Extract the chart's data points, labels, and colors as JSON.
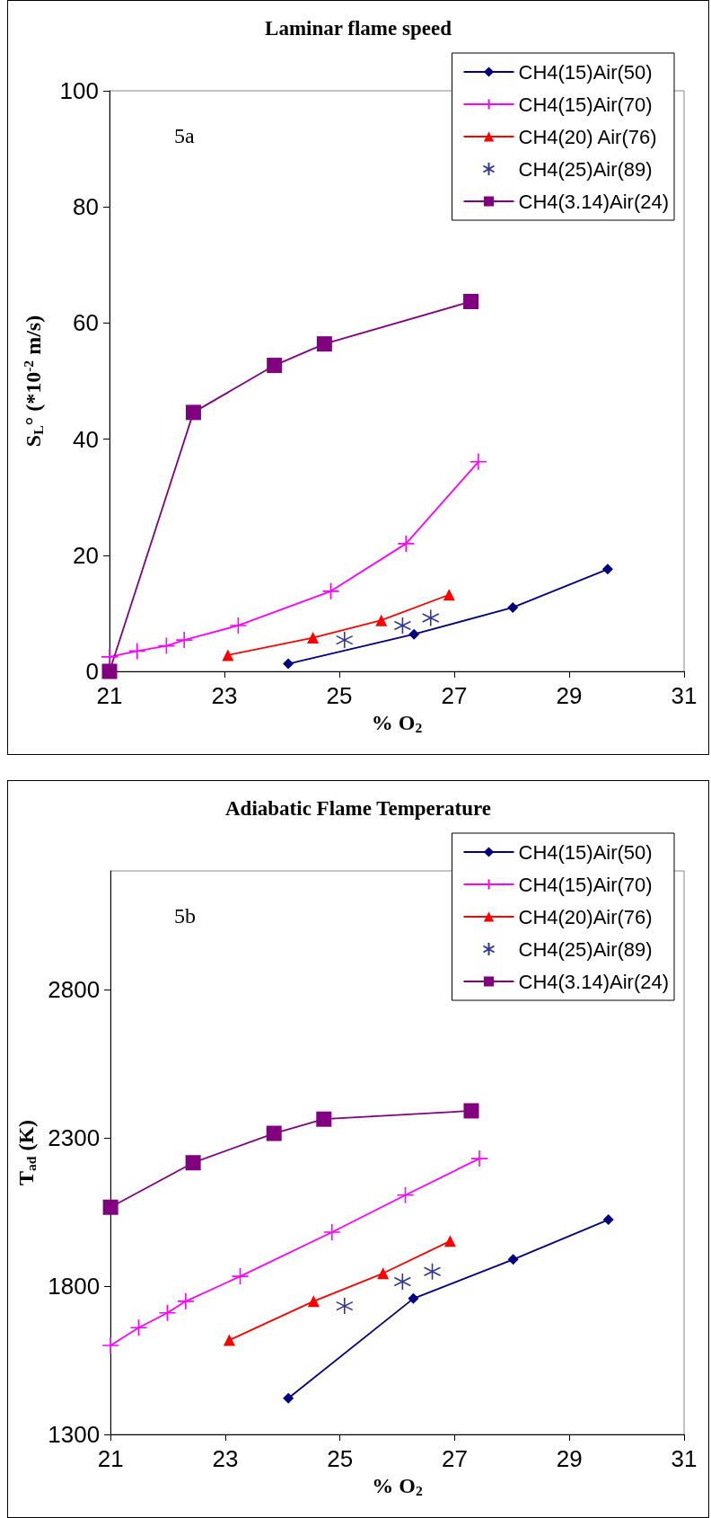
{
  "chart_data": [
    {
      "type": "line",
      "title": "Laminar flame speed",
      "xlabel": "% O$_{2}$",
      "ylabel": "S$_{L}$° (*10$^{-2}$ m/s)",
      "annotations": [
        "5a"
      ],
      "xlim": [
        21,
        31
      ],
      "xticks": [
        21,
        23,
        25,
        27,
        29,
        31
      ],
      "ylim": [
        0,
        100
      ],
      "yticks": [
        0,
        20,
        40,
        60,
        80,
        100
      ],
      "grid": false,
      "legend": "top right",
      "line_style": "solid",
      "series": [
        {
          "name": "CH4(15)Air(50)",
          "color": "#000080",
          "marker": "diamond",
          "x": [
            24.11,
            26.3,
            28.02,
            29.67
          ],
          "values": [
            1.3,
            6.4,
            11.0,
            17.6
          ]
        },
        {
          "name": "CH4(15)Air(70)",
          "color": "#ff00ff",
          "marker": "cross",
          "x": [
            21.0,
            21.48,
            21.99,
            22.3,
            23.24,
            24.85,
            26.16,
            27.42
          ],
          "values": [
            2.5,
            3.5,
            4.4,
            5.4,
            7.9,
            13.8,
            22.0,
            36.1
          ]
        },
        {
          "name": "CH4(20) Air(76)",
          "color": "#ff0000",
          "marker": "triangle",
          "x": [
            23.06,
            24.54,
            25.73,
            26.91
          ],
          "values": [
            2.8,
            5.8,
            8.8,
            13.2
          ]
        },
        {
          "name": "CH4(25)Air(89)",
          "color": "#000080",
          "type": "scatter",
          "marker": "cross",
          "x": [
            25.09,
            26.1,
            26.59
          ],
          "values": [
            5.4,
            7.9,
            9.2
          ]
        },
        {
          "name": "CH4(3.14)Air(24)",
          "color": "#800080",
          "marker": "square",
          "x": [
            21.0,
            22.46,
            23.87,
            24.74,
            27.29
          ],
          "values": [
            0,
            44.6,
            52.7,
            56.4,
            63.7
          ]
        }
      ]
    },
    {
      "type": "line",
      "title": "Adiabatic Flame Temperature",
      "xlabel": "% O$_{2}$",
      "ylabel": "T$_{ad}$ (K)",
      "annotations": [
        "5b"
      ],
      "xlim": [
        21,
        31
      ],
      "xticks": [
        21,
        23,
        25,
        27,
        29,
        31
      ],
      "ylim": [
        1300,
        3200
      ],
      "yticks": [
        1300,
        1800,
        2300,
        2800
      ],
      "grid": false,
      "legend": "top right",
      "line_style": "solid",
      "series": [
        {
          "name": "CH4(15)Air(50)",
          "color": "#000080",
          "marker": "diamond",
          "x": [
            24.1,
            26.28,
            28.02,
            29.68
          ],
          "values": [
            1422,
            1758,
            1890,
            2024
          ]
        },
        {
          "name": "CH4(15)Air(70)",
          "color": "#ff00ff",
          "marker": "cross",
          "x": [
            21.0,
            21.49,
            21.99,
            22.31,
            23.26,
            24.86,
            26.14,
            27.43
          ],
          "values": [
            1600,
            1660,
            1710,
            1749,
            1833,
            1982,
            2107,
            2230
          ]
        },
        {
          "name": "CH4(20)Air(76)",
          "color": "#ff0000",
          "marker": "triangle",
          "x": [
            23.07,
            24.54,
            25.75,
            26.92
          ],
          "values": [
            1618,
            1749,
            1843,
            1952
          ]
        },
        {
          "name": "CH4(25)Air(89)",
          "color": "#000080",
          "type": "scatter",
          "marker": "cross",
          "x": [
            25.08,
            26.09,
            26.61
          ],
          "values": [
            1733,
            1815,
            1849
          ]
        },
        {
          "name": "CH4(3.14)Air(24)",
          "color": "#800080",
          "marker": "square",
          "x": [
            21.0,
            22.44,
            23.85,
            24.72,
            27.29
          ],
          "values": [
            2066,
            2216,
            2315,
            2363,
            2391
          ]
        }
      ]
    }
  ]
}
